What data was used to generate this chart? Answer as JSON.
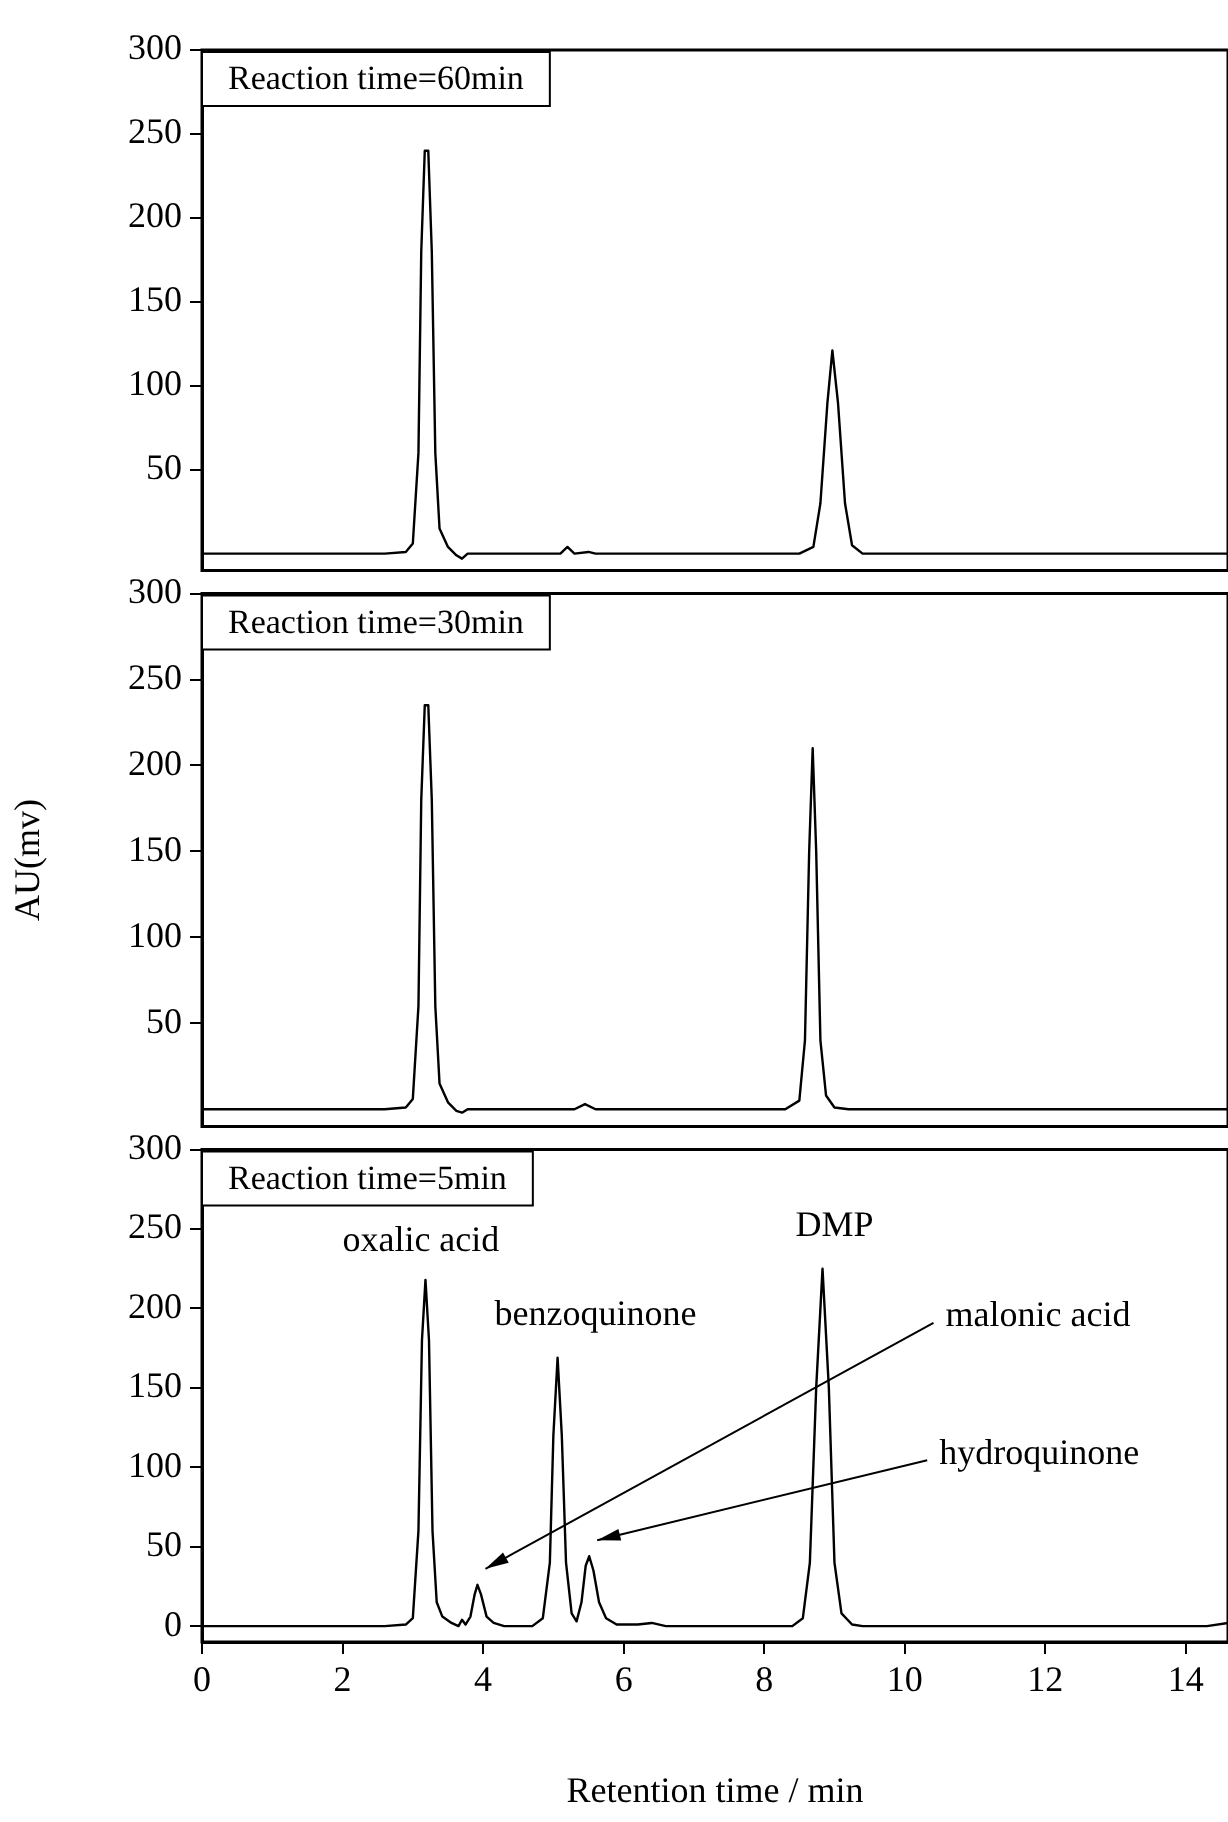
{
  "chart_data": [
    {
      "type": "line",
      "title": "Reaction time=60min",
      "xlim": [
        0,
        14.6
      ],
      "ylim": [
        -10,
        300
      ],
      "yticks": [
        50,
        100,
        150,
        200,
        250,
        300
      ],
      "tick_labels": "y",
      "marker": "none",
      "line_style": "solid",
      "series": [
        {
          "color": "#000000",
          "x": [
            0,
            2.6,
            2.9,
            3.0,
            3.08,
            3.12,
            3.17,
            3.22,
            3.27,
            3.32,
            3.38,
            3.5,
            3.62,
            3.7,
            3.78,
            4.0,
            5.1,
            5.2,
            5.3,
            5.5,
            5.6,
            5.7,
            8.5,
            8.7,
            8.8,
            8.9,
            8.97,
            9.05,
            9.15,
            9.25,
            9.4,
            14.6
          ],
          "values": [
            0,
            0,
            1,
            6,
            60,
            180,
            240,
            240,
            180,
            60,
            15,
            4,
            -1,
            -3,
            0,
            0,
            0,
            4,
            0,
            1,
            0,
            0,
            0,
            4,
            30,
            90,
            121,
            90,
            30,
            5,
            0,
            0
          ]
        }
      ]
    },
    {
      "type": "line",
      "title": "Reaction time=30min",
      "ylabel": "AU(mv)",
      "xlim": [
        0,
        14.6
      ],
      "ylim": [
        -10,
        300
      ],
      "yticks": [
        50,
        100,
        150,
        200,
        250,
        300
      ],
      "tick_labels": "y",
      "marker": "none",
      "line_style": "solid",
      "series": [
        {
          "color": "#000000",
          "x": [
            0,
            2.6,
            2.9,
            3.0,
            3.08,
            3.12,
            3.17,
            3.22,
            3.27,
            3.32,
            3.38,
            3.5,
            3.62,
            3.7,
            3.78,
            4.0,
            5.3,
            5.45,
            5.6,
            5.8,
            8.3,
            8.5,
            8.58,
            8.64,
            8.69,
            8.74,
            8.8,
            8.88,
            9.0,
            9.2,
            14.6
          ],
          "values": [
            0,
            0,
            1,
            6,
            60,
            180,
            235,
            235,
            180,
            60,
            15,
            4,
            -1,
            -2,
            0,
            0,
            0,
            3,
            0,
            0,
            0,
            5,
            40,
            150,
            210,
            150,
            40,
            8,
            1,
            0,
            0
          ]
        }
      ]
    },
    {
      "type": "line",
      "title": "Reaction time=5min",
      "xlabel": "Retention time / min",
      "xlim": [
        0,
        14.6
      ],
      "ylim": [
        -10,
        300
      ],
      "xticks": [
        0,
        2,
        4,
        6,
        8,
        10,
        12,
        14
      ],
      "yticks": [
        0,
        50,
        100,
        150,
        200,
        250,
        300
      ],
      "marker": "none",
      "line_style": "solid",
      "annotations": [
        {
          "text": "oxalic acid",
          "x": 3.2,
          "y": 218
        },
        {
          "text": "benzoquinone",
          "x": 5.06,
          "y": 169
        },
        {
          "text": "DMP",
          "x": 8.83,
          "y": 225
        },
        {
          "text": "malonic acid",
          "x": 3.92,
          "y": 26
        },
        {
          "text": "hydroquinone",
          "x": 5.51,
          "y": 44
        }
      ],
      "series": [
        {
          "color": "#000000",
          "x": [
            0,
            2.6,
            2.9,
            3.0,
            3.08,
            3.13,
            3.18,
            3.23,
            3.28,
            3.34,
            3.42,
            3.55,
            3.65,
            3.7,
            3.75,
            3.82,
            3.88,
            3.92,
            3.97,
            4.05,
            4.15,
            4.3,
            4.7,
            4.85,
            4.95,
            5.0,
            5.06,
            5.12,
            5.18,
            5.26,
            5.33,
            5.4,
            5.46,
            5.51,
            5.57,
            5.65,
            5.75,
            5.9,
            6.2,
            6.4,
            6.6,
            8.4,
            8.55,
            8.65,
            8.74,
            8.83,
            8.92,
            9.0,
            9.1,
            9.25,
            9.4,
            14.3,
            14.6
          ],
          "values": [
            0,
            0,
            1,
            5,
            60,
            180,
            218,
            180,
            60,
            15,
            6,
            2,
            0,
            4,
            1,
            6,
            20,
            26,
            20,
            6,
            2,
            0,
            0,
            5,
            40,
            120,
            169,
            120,
            40,
            8,
            3,
            15,
            38,
            44,
            35,
            15,
            5,
            1,
            1,
            2,
            0,
            0,
            5,
            40,
            150,
            225,
            150,
            40,
            8,
            1,
            0,
            0,
            2
          ]
        }
      ]
    }
  ]
}
